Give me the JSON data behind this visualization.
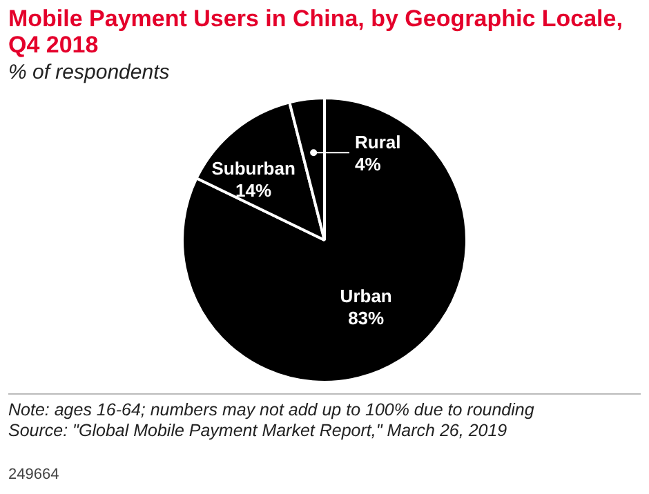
{
  "chart_data": {
    "type": "pie",
    "title": "Mobile Payment Users in China, by Geographic Locale, Q4 2018",
    "subtitle": "% of respondents",
    "categories": [
      "Urban",
      "Suburban",
      "Rural"
    ],
    "values": [
      83,
      14,
      4
    ],
    "value_labels": [
      "83%",
      "14%",
      "4%"
    ],
    "colors": [
      "#000000",
      "#000000",
      "#000000"
    ],
    "legend": false,
    "annotations": [
      "Note: ages 16-64; numbers may not add up to 100% due to rounding",
      "Source: \"Global Mobile Payment Market Report,\" March 26, 2019",
      "249664"
    ]
  }
}
